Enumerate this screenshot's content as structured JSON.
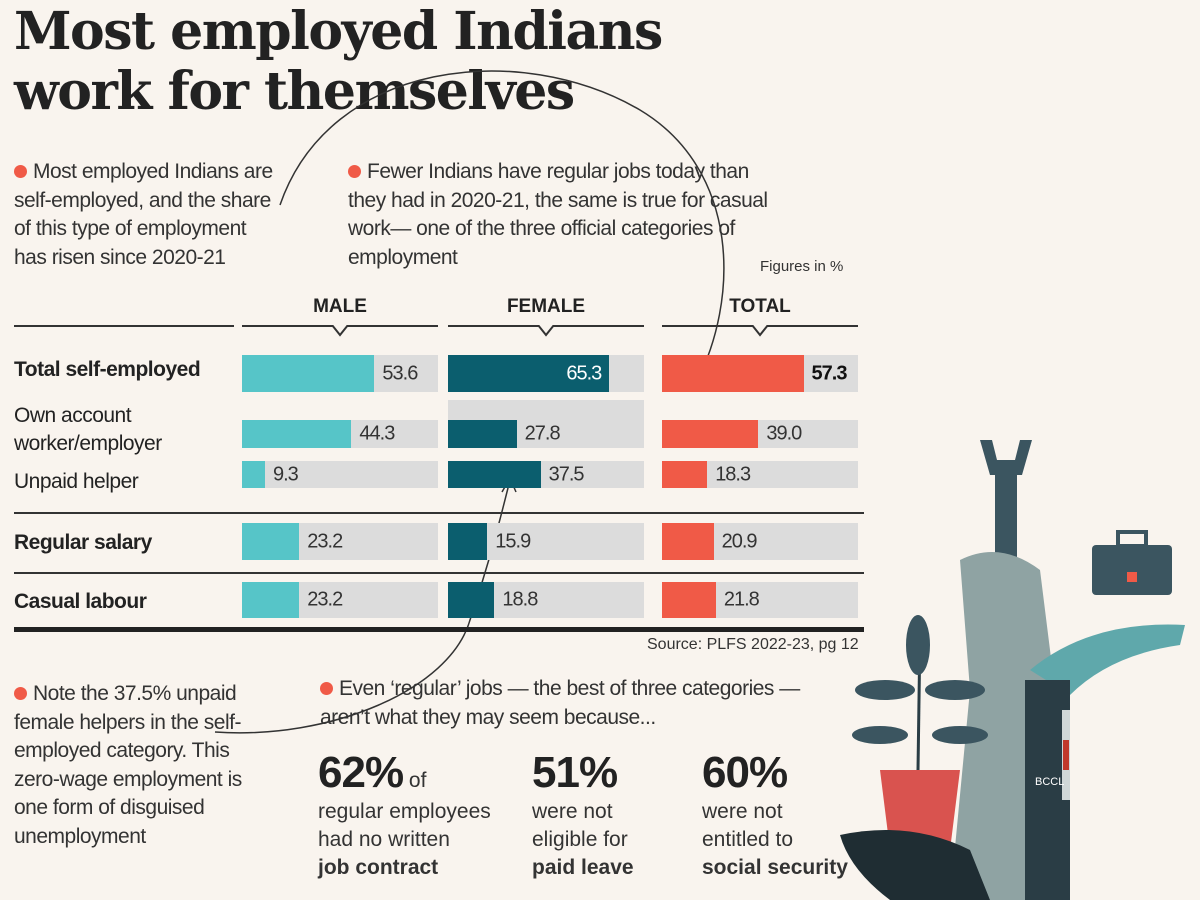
{
  "title_line1": "Most employed Indians",
  "title_line2": "work for themselves",
  "note_left": "Most employed Indians are self-employed, and the share of this type of employment has risen since 2020-21",
  "note_middle": "Fewer Indians have regular jobs today than they had in 2020-21, the same is true for casual work— one of the three official categories of employment",
  "units_note": "Figures in %",
  "source": "Source: PLFS 2022-23, pg 12",
  "note_bottom_left": "Note the 37.5% unpaid female helpers in the self-employed category. This zero-wage employment is one form of disguised unemployment",
  "note_bottom_mid": "Even ‘regular’ jobs — the best of three categories — aren’t what they may seem because...",
  "stats": [
    {
      "big": "62%",
      "suffix": " of",
      "line1": "regular employees",
      "line2": "had no written",
      "bold": "job contract"
    },
    {
      "big": "51%",
      "suffix": "",
      "line1": "were not",
      "line2": "eligible for",
      "bold": "paid leave"
    },
    {
      "big": "60%",
      "suffix": "",
      "line1": "were not",
      "line2": "entitled to",
      "bold": "social security"
    }
  ],
  "watermark": "BCCL",
  "chart_data": {
    "type": "bar",
    "orientation": "horizontal",
    "categories": [
      "Total self-employed",
      "Own account worker/employer",
      "Unpaid helper",
      "Regular salary",
      "Casual labour"
    ],
    "series": [
      {
        "name": "MALE",
        "color": "#56c5c8",
        "values": [
          53.6,
          44.3,
          9.3,
          23.2,
          23.2
        ],
        "labels": [
          "53.6",
          "44.3",
          "9.3",
          "23.2",
          "23.2"
        ]
      },
      {
        "name": "FEMALE",
        "color": "#0b5e6e",
        "values": [
          65.3,
          27.8,
          37.5,
          15.9,
          18.8
        ],
        "labels": [
          "65.3",
          "27.8",
          "37.5",
          "15.9",
          "18.8"
        ]
      },
      {
        "name": "TOTAL",
        "color": "#f05a47",
        "values": [
          57.3,
          39.0,
          18.3,
          20.9,
          21.8
        ],
        "labels": [
          "57.3",
          "39.0",
          "18.3",
          "20.9",
          "21.8"
        ]
      }
    ],
    "unit": "%"
  }
}
